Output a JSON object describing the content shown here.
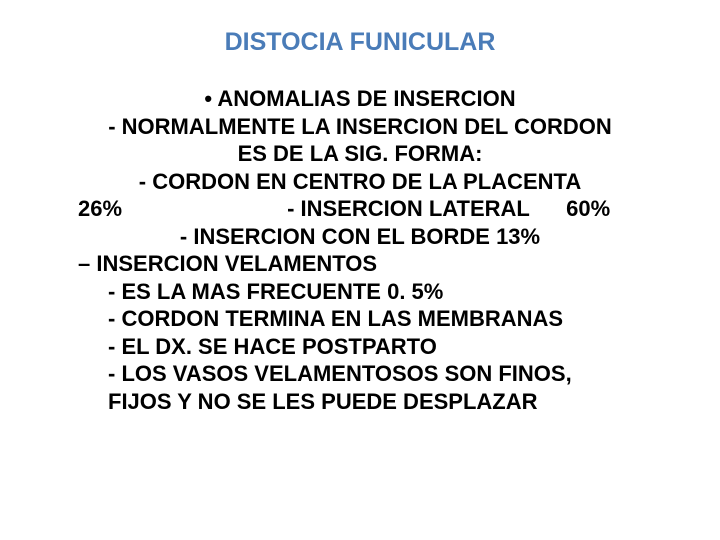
{
  "title": "DISTOCIA FUNICULAR",
  "lines": {
    "l0": "•   ANOMALIAS DE INSERCION",
    "l1": "- NORMALMENTE LA INSERCION DEL CORDON",
    "l2": "ES DE LA SIG. FORMA:",
    "l3": "- CORDON EN CENTRO DE LA PLACENTA",
    "l4": "26%                           - INSERCION LATERAL      60%",
    "l5": "- INSERCION CON EL BORDE   13%",
    "l6": "– INSERCION  VELAMENTOS",
    "l7": "-  ES LA MAS FRECUENTE   0. 5%",
    "l8": "- CORDON TERMINA EN LAS MEMBRANAS",
    "l9": "- EL DX. SE HACE POSTPARTO",
    "l10": "- LOS VASOS VELAMENTOSOS SON FINOS,",
    "l11": "FIJOS Y NO SE LES PUEDE DESPLAZAR"
  },
  "colors": {
    "title": "#4a7cb8",
    "text": "#000000",
    "background": "#ffffff"
  },
  "typography": {
    "title_fontsize": 25,
    "body_fontsize": 22,
    "font_family": "Arial",
    "font_weight": "bold"
  }
}
